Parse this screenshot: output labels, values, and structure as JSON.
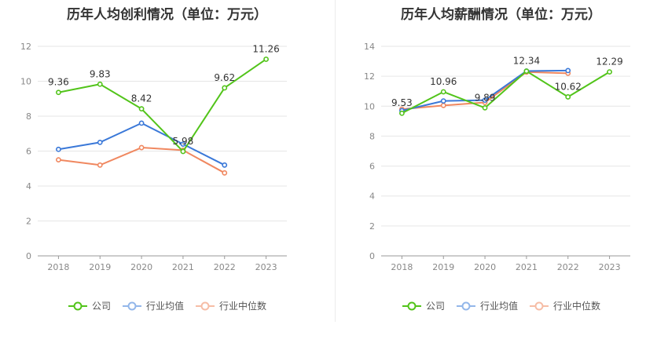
{
  "chart_data": [
    {
      "type": "line",
      "title": "历年人均创利情况（单位：万元）",
      "xlabel": "",
      "ylabel": "",
      "categories": [
        "2018",
        "2019",
        "2020",
        "2021",
        "2022",
        "2023"
      ],
      "ylim": [
        0,
        12
      ],
      "yticks": [
        "0",
        "2",
        "4",
        "6",
        "8",
        "10",
        "12"
      ],
      "grid": true,
      "legend_position": "bottom",
      "series": [
        {
          "name": "公司",
          "color": "#52c41a",
          "values": [
            9.36,
            9.83,
            8.42,
            5.98,
            9.62,
            11.26
          ],
          "labels": [
            "9.36",
            "9.83",
            "8.42",
            "5.98",
            "9.62",
            "11.26"
          ]
        },
        {
          "name": "行业均值",
          "color": "#3a78d8",
          "values": [
            6.1,
            6.5,
            7.6,
            6.4,
            5.2,
            null
          ],
          "labels": []
        },
        {
          "name": "行业中位数",
          "color": "#f08860",
          "values": [
            5.5,
            5.2,
            6.2,
            6.05,
            4.75,
            null
          ],
          "labels": []
        }
      ]
    },
    {
      "type": "line",
      "title": "历年人均薪酬情况（单位：万元）",
      "xlabel": "",
      "ylabel": "",
      "categories": [
        "2018",
        "2019",
        "2020",
        "2021",
        "2022",
        "2023"
      ],
      "ylim": [
        0,
        14
      ],
      "yticks": [
        "0",
        "2",
        "4",
        "6",
        "8",
        "10",
        "12",
        "14"
      ],
      "grid": true,
      "legend_position": "bottom",
      "series": [
        {
          "name": "公司",
          "color": "#52c41a",
          "values": [
            9.53,
            10.96,
            9.89,
            12.34,
            10.62,
            12.29
          ],
          "labels": [
            "9.53",
            "10.96",
            "9.89",
            "12.34",
            "10.62",
            "12.29"
          ]
        },
        {
          "name": "行业均值",
          "color": "#3a78d8",
          "values": [
            9.7,
            10.35,
            10.4,
            12.35,
            12.38,
            null
          ],
          "labels": []
        },
        {
          "name": "行业中位数",
          "color": "#f08860",
          "values": [
            9.8,
            10.05,
            10.25,
            12.28,
            12.2,
            null
          ],
          "labels": []
        }
      ]
    }
  ]
}
